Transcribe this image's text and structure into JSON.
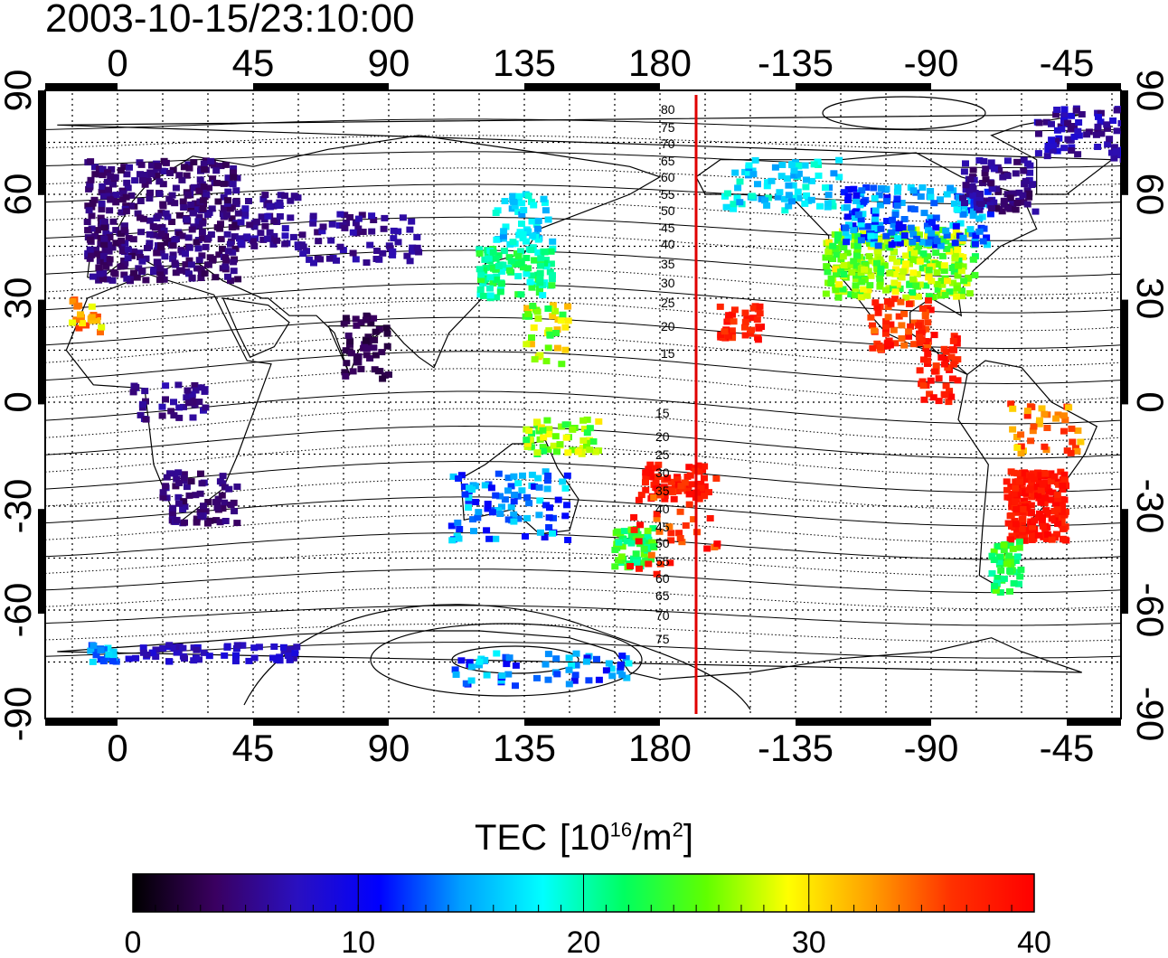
{
  "title": "2003-10-15/23:10:00",
  "map": {
    "lon_ticks": [
      "0",
      "45",
      "90",
      "135",
      "180",
      "-135",
      "-90",
      "-45"
    ],
    "lat_ticks_left": [
      "90",
      "60",
      "30",
      "0",
      "-30",
      "-60",
      "-90"
    ],
    "lat_ticks_right": [
      "90",
      "60",
      "30",
      "0",
      "-30",
      "-60",
      "-90"
    ],
    "contour_labels_north": [
      "80",
      "75",
      "70",
      "65",
      "60",
      "55",
      "50",
      "45",
      "40",
      "35",
      "30",
      "25",
      "20",
      "15"
    ],
    "contour_labels_south": [
      "15",
      "20",
      "25",
      "30",
      "35",
      "40",
      "45",
      "50",
      "55",
      "60",
      "65",
      "70",
      "75"
    ],
    "marker_color": "#e00000"
  },
  "colorbar": {
    "label": "TEC",
    "unit_prefix": "[10",
    "unit_exp": "16",
    "unit_mid": "/m",
    "unit_exp2": "2",
    "unit_suffix": "]",
    "ticks": [
      "0",
      "10",
      "20",
      "30",
      "40"
    ],
    "range": [
      0,
      40
    ],
    "colors": [
      "#000000",
      "#3a0060",
      "#2a10c0",
      "#0000ff",
      "#00a0ff",
      "#00ffff",
      "#00ff60",
      "#60ff00",
      "#ffff00",
      "#ffa000",
      "#ff3000",
      "#ff0000"
    ]
  }
}
